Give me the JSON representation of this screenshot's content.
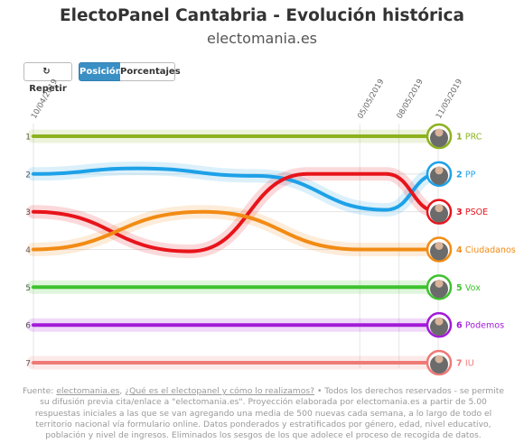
{
  "header": {
    "title": "ElectoPanel Cantabria - Evolución histórica",
    "subtitle": "electomania.es"
  },
  "controls": {
    "repeat_label": "Repetir",
    "position_label": "Posición",
    "percent_label": "Porcentajes",
    "active": "Posición"
  },
  "chart_data": {
    "type": "line",
    "title": "ElectoPanel Cantabria - Evolución histórica",
    "x": [
      "10/04/2019",
      "05/05/2019",
      "08/05/2019",
      "11/05/2019"
    ],
    "x_date_days": [
      0,
      25,
      28,
      31
    ],
    "ylabel": "",
    "ylim": [
      1,
      7
    ],
    "y_inverted": true,
    "yticks": [
      "1",
      "2",
      "3",
      "4",
      "5",
      "6",
      "7"
    ],
    "grid": true,
    "series": [
      {
        "name": "PRC",
        "rank": "1",
        "color": "#8cb21e",
        "points": [
          [
            0,
            1
          ],
          [
            31,
            1
          ]
        ]
      },
      {
        "name": "PP",
        "rank": "2",
        "color": "#1da1e8",
        "points": [
          [
            0,
            2
          ],
          [
            8,
            1.85
          ],
          [
            17,
            2.05
          ],
          [
            27,
            2.95
          ],
          [
            31,
            2
          ]
        ]
      },
      {
        "name": "PSOE",
        "rank": "3",
        "color": "#e8141b",
        "points": [
          [
            0,
            3
          ],
          [
            12,
            4.05
          ],
          [
            21,
            2
          ],
          [
            27,
            2
          ],
          [
            31,
            3
          ]
        ]
      },
      {
        "name": "Ciudadanos",
        "rank": "4",
        "color": "#f28b14",
        "points": [
          [
            0,
            4
          ],
          [
            13,
            3
          ],
          [
            25,
            4
          ],
          [
            31,
            4
          ]
        ]
      },
      {
        "name": "Vox",
        "rank": "5",
        "color": "#3dc22e",
        "points": [
          [
            0,
            5
          ],
          [
            31,
            5
          ]
        ]
      },
      {
        "name": "Podemos",
        "rank": "6",
        "color": "#a21ad8",
        "points": [
          [
            0,
            6
          ],
          [
            31,
            6
          ]
        ]
      },
      {
        "name": "IU",
        "rank": "7",
        "color": "#ee7a76",
        "points": [
          [
            0,
            7
          ],
          [
            31,
            7
          ]
        ]
      }
    ]
  },
  "footer": {
    "source_prefix": "Fuente: ",
    "source_link": "electomania.es",
    "sep1": ", ",
    "method_link": "¿Qué es el electopanel y cómo lo realizamos?",
    "text": " • Todos los derechos reservados - se permite su difusión previa cita/enlace a \"electomania.es\". Proyección elaborada por electomania.es a partir de 5.00 respuestas iniciales a las que se van agregando una media de 500 nuevas cada semana, a lo largo de todo el territorio nacional vía formulario online. Datos ponderados y estratificados por género, edad, nivel educativo, población y nivel de ingresos. Eliminados los sesgos de los que adolece el proceso de recogida de datos."
  }
}
